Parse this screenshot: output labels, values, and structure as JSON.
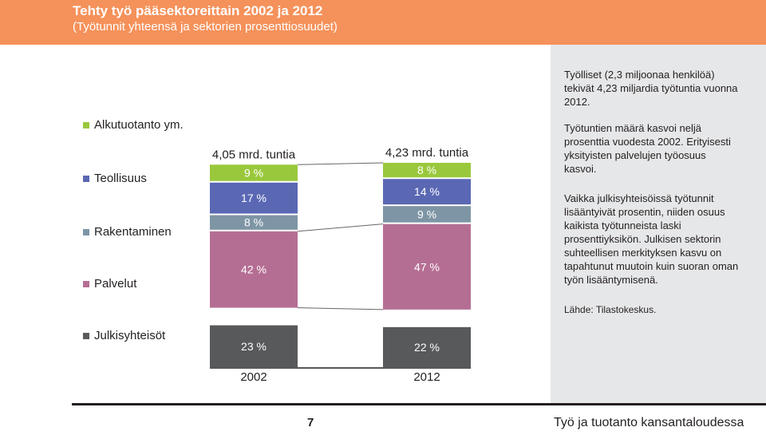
{
  "header": {
    "title": "Tehty työ pääsektoreittain 2002 ja 2012",
    "subtitle": "(Työtunnit yhteensä ja sektorien prosenttiosuudet)"
  },
  "legend": [
    {
      "label": "Alkutuotanto ym.",
      "color": "#9ac83c"
    },
    {
      "label": "Teollisuus",
      "color": "#5a68b4"
    },
    {
      "label": "Rakentaminen",
      "color": "#7e95a5"
    },
    {
      "label": "Palvelut",
      "color": "#b56e93"
    },
    {
      "label": "Julkisyhteisöt",
      "color": "#58595b"
    }
  ],
  "chart_data": {
    "type": "bar",
    "stacked": true,
    "categories": [
      "2002",
      "2012"
    ],
    "totals": [
      "4,05 mrd. tuntia",
      "4,23 mrd. tuntia"
    ],
    "series": [
      {
        "name": "Julkisyhteisöt",
        "values": [
          23,
          22
        ],
        "labels": [
          "23 %",
          "22 %"
        ],
        "color": "#58595b"
      },
      {
        "name": "Palvelut",
        "values": [
          42,
          47
        ],
        "labels": [
          "42 %",
          "47 %"
        ],
        "color": "#b56e93"
      },
      {
        "name": "Rakentaminen",
        "values": [
          8,
          9
        ],
        "labels": [
          "8 %",
          "9 %"
        ],
        "color": "#7e95a5"
      },
      {
        "name": "Teollisuus",
        "values": [
          17,
          14
        ],
        "labels": [
          "17 %",
          "14 %"
        ],
        "color": "#5a68b4"
      },
      {
        "name": "Alkutuotanto ym.",
        "values": [
          9,
          8
        ],
        "labels": [
          "9 %",
          "8 %"
        ],
        "color": "#9ac83c"
      }
    ]
  },
  "side": {
    "p1": "Työlliset (2,3 miljoonaa henkilöä) tekivät 4,23 miljardia työtuntia vuonna 2012.",
    "p2": "Työtuntien määrä kasvoi neljä prosenttia vuodesta 2002. Erityisesti yksityisten palvelujen työosuus kasvoi.",
    "p3": "Vaikka julkisyhteisöissä työtunnit lisääntyivät prosentin, niiden osuus kaikista työtunneista laski prosenttiyksikön. Julkisen sektorin suhteellisen merkityksen kasvu on tapahtunut muutoin kuin suoran oman työn lisääntymisenä.",
    "source": "Lähde: Tilastokeskus."
  },
  "footer": {
    "page_number": "7",
    "title": "Työ ja tuotanto kansantaloudessa"
  }
}
